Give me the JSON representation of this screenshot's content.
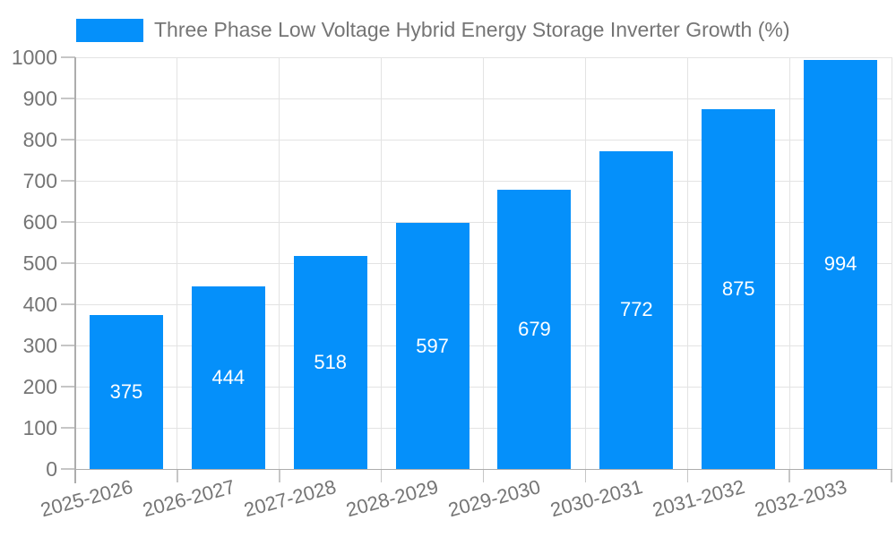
{
  "chart_data": {
    "type": "bar",
    "title": "Three Phase Low Voltage Hybrid Energy Storage Inverter Growth (%)",
    "legend": {
      "label": "Three Phase Low Voltage Hybrid Energy Storage Inverter Growth (%)",
      "position": "top-left"
    },
    "categories": [
      "2025-2026",
      "2026-2027",
      "2027-2028",
      "2028-2029",
      "2029-2030",
      "2030-2031",
      "2031-2032",
      "2032-2033"
    ],
    "values": [
      375,
      444,
      518,
      597,
      679,
      772,
      875,
      994
    ],
    "xlabel": "",
    "ylabel": "",
    "ylim": [
      0,
      1000
    ],
    "yticks": [
      0,
      100,
      200,
      300,
      400,
      500,
      600,
      700,
      800,
      900,
      1000
    ],
    "grid": true,
    "value_label_position": "inside-center",
    "x_label_rotation_deg": -15,
    "colors": {
      "bar": "#0590FA",
      "label_text": "#FFFFFF",
      "axis_text": "#757575",
      "axis_line": "#ADADAD",
      "grid_line": "#E3E3E3",
      "tick_line": "#C6C6C6",
      "background": "#FFFFFF"
    }
  }
}
